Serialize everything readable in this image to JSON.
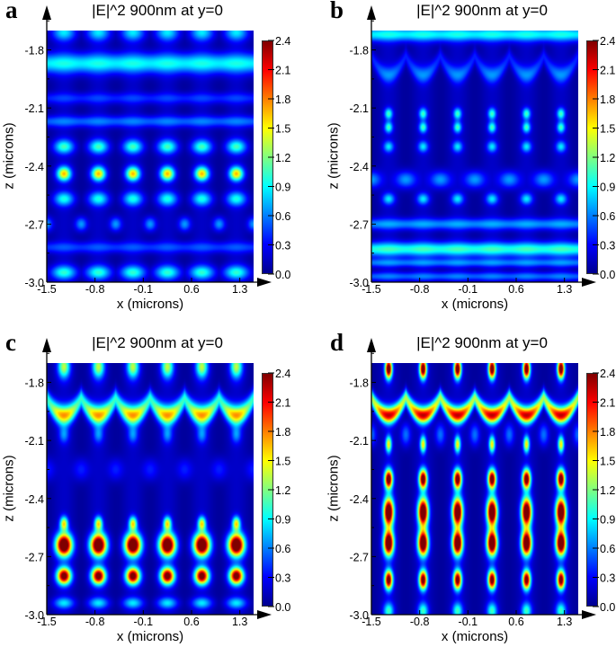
{
  "chart_data": [
    {
      "panel_label": "a",
      "type": "heatmap",
      "title": "|E|^2 900nm at y=0",
      "xlabel": "x (microns)",
      "ylabel": "z (microns)",
      "xlim": [
        -1.5,
        1.5
      ],
      "ylim": [
        -3.0,
        -1.7
      ],
      "xticks": [
        "-1.5",
        "-0.8",
        "-0.1",
        "0.6",
        "1.3"
      ],
      "yticks": [
        "-3.0",
        "-2.7",
        "-2.4",
        "-2.1",
        "-1.8"
      ],
      "colorbar": {
        "range": [
          0.0,
          2.4
        ],
        "ticks": [
          "0.0",
          "0.3",
          "0.6",
          "0.9",
          "1.2",
          "1.5",
          "1.8",
          "2.1",
          "2.4"
        ],
        "colormap": "jet"
      },
      "features": [
        {
          "kind": "spots",
          "z": -1.71,
          "x0": -1.25,
          "period": 0.5,
          "peak": 0.7,
          "sx": 0.12,
          "sz": 0.03
        },
        {
          "kind": "band",
          "z": -1.87,
          "peak": 0.8,
          "sz": 0.035
        },
        {
          "kind": "band",
          "z": -2.05,
          "peak": 0.3,
          "sz": 0.02
        },
        {
          "kind": "band",
          "z": -2.17,
          "peak": 0.45,
          "sz": 0.02
        },
        {
          "kind": "spots",
          "z": -2.3,
          "x0": -1.25,
          "period": 0.5,
          "peak": 0.9,
          "sx": 0.1,
          "sz": 0.025
        },
        {
          "kind": "spots",
          "z": -2.44,
          "x0": -1.25,
          "period": 0.5,
          "peak": 1.5,
          "sx": 0.07,
          "sz": 0.025
        },
        {
          "kind": "spots",
          "z": -2.57,
          "x0": -1.25,
          "period": 0.5,
          "peak": 0.8,
          "sx": 0.1,
          "sz": 0.025
        },
        {
          "kind": "spots",
          "z": -2.7,
          "x0": -1.0,
          "period": 0.5,
          "peak": 0.6,
          "sx": 0.06,
          "sz": 0.025
        },
        {
          "kind": "band",
          "z": -2.82,
          "peak": 0.35,
          "sz": 0.02
        },
        {
          "kind": "spots",
          "z": -2.95,
          "x0": -1.25,
          "period": 0.5,
          "peak": 0.85,
          "sx": 0.13,
          "sz": 0.025
        }
      ]
    },
    {
      "panel_label": "b",
      "type": "heatmap",
      "title": "|E|^2 900nm at y=0",
      "xlabel": "x (microns)",
      "ylabel": "z (microns)",
      "xlim": [
        -1.5,
        1.5
      ],
      "ylim": [
        -3.0,
        -1.7
      ],
      "xticks": [
        "-1.5",
        "-0.8",
        "-0.1",
        "0.6",
        "1.3"
      ],
      "yticks": [
        "-3.0",
        "-2.7",
        "-2.4",
        "-2.1",
        "-1.8"
      ],
      "colorbar": {
        "range": [
          0.0,
          2.4
        ],
        "ticks": [
          "0.0",
          "0.3",
          "0.6",
          "0.9",
          "1.2",
          "1.5",
          "1.8",
          "2.1",
          "2.4"
        ],
        "colormap": "jet"
      },
      "features": [
        {
          "kind": "band",
          "z": -1.72,
          "peak": 0.8,
          "sz": 0.025
        },
        {
          "kind": "arc",
          "z": -1.93,
          "x0": -1.25,
          "period": 0.5,
          "curv": 1.6,
          "peak": 0.5,
          "sz": 0.03
        },
        {
          "kind": "spots",
          "z": -2.13,
          "x0": -1.25,
          "period": 0.5,
          "peak": 0.9,
          "sx": 0.04,
          "sz": 0.02
        },
        {
          "kind": "spots",
          "z": -2.2,
          "x0": -1.25,
          "period": 0.5,
          "peak": 0.9,
          "sx": 0.04,
          "sz": 0.02
        },
        {
          "kind": "spots",
          "z": -2.3,
          "x0": -1.25,
          "period": 0.5,
          "peak": 0.7,
          "sx": 0.05,
          "sz": 0.02
        },
        {
          "kind": "spots",
          "z": -2.47,
          "x0": -1.0,
          "period": 0.5,
          "peak": 0.6,
          "sx": 0.1,
          "sz": 0.03
        },
        {
          "kind": "spots",
          "z": -2.57,
          "x0": -1.25,
          "period": 0.5,
          "peak": 0.7,
          "sx": 0.06,
          "sz": 0.02
        },
        {
          "kind": "band",
          "z": -2.7,
          "peak": 0.55,
          "sz": 0.02
        },
        {
          "kind": "band",
          "z": -2.83,
          "peak": 0.9,
          "sz": 0.025
        },
        {
          "kind": "band",
          "z": -2.9,
          "peak": 0.5,
          "sz": 0.015
        },
        {
          "kind": "band",
          "z": -2.97,
          "peak": 0.45,
          "sz": 0.015
        }
      ]
    },
    {
      "panel_label": "c",
      "type": "heatmap",
      "title": "|E|^2 900nm at y=0",
      "xlabel": "x (microns)",
      "ylabel": "z (microns)",
      "xlim": [
        -1.5,
        1.5
      ],
      "ylim": [
        -3.0,
        -1.7
      ],
      "xticks": [
        "-1.5",
        "-0.8",
        "-0.1",
        "0.6",
        "1.3"
      ],
      "yticks": [
        "-3.0",
        "-2.7",
        "-2.4",
        "-2.1",
        "-1.8"
      ],
      "colorbar": {
        "range": [
          0.0,
          2.4
        ],
        "ticks": [
          "0.0",
          "0.3",
          "0.6",
          "0.9",
          "1.2",
          "1.5",
          "1.8",
          "2.1",
          "2.4"
        ],
        "colormap": "jet"
      },
      "features": [
        {
          "kind": "spots",
          "z": -1.72,
          "x0": -1.25,
          "period": 0.5,
          "peak": 1.2,
          "sx": 0.06,
          "sz": 0.04
        },
        {
          "kind": "arc",
          "z": -1.97,
          "x0": -1.25,
          "period": 0.5,
          "curv": 1.4,
          "peak": 1.6,
          "sz": 0.035
        },
        {
          "kind": "spots",
          "z": -2.07,
          "x0": -1.25,
          "period": 0.5,
          "peak": 0.5,
          "sx": 0.05,
          "sz": 0.03
        },
        {
          "kind": "spots",
          "z": -2.25,
          "x0": -1.0,
          "period": 0.5,
          "peak": 0.3,
          "sx": 0.08,
          "sz": 0.04
        },
        {
          "kind": "spots",
          "z": -2.53,
          "x0": -1.25,
          "period": 0.5,
          "peak": 1.4,
          "sx": 0.04,
          "sz": 0.025
        },
        {
          "kind": "spots",
          "z": -2.64,
          "x0": -1.25,
          "period": 0.5,
          "peak": 2.9,
          "sx": 0.08,
          "sz": 0.04
        },
        {
          "kind": "spots",
          "z": -2.8,
          "x0": -1.25,
          "period": 0.5,
          "peak": 2.5,
          "sx": 0.07,
          "sz": 0.03
        },
        {
          "kind": "spots",
          "z": -2.94,
          "x0": -1.25,
          "period": 0.5,
          "peak": 0.7,
          "sx": 0.1,
          "sz": 0.02
        }
      ]
    },
    {
      "panel_label": "d",
      "type": "heatmap",
      "title": "|E|^2 900nm at y=0",
      "xlabel": "x (microns)",
      "ylabel": "z (microns)",
      "xlim": [
        -1.5,
        1.5
      ],
      "ylim": [
        -3.0,
        -1.7
      ],
      "xticks": [
        "-1.5",
        "-0.8",
        "-0.1",
        "0.6",
        "1.3"
      ],
      "yticks": [
        "-3.0",
        "-2.7",
        "-2.4",
        "-2.1",
        "-1.8"
      ],
      "colorbar": {
        "range": [
          0.0,
          2.4
        ],
        "ticks": [
          "0.0",
          "0.3",
          "0.6",
          "0.9",
          "1.2",
          "1.5",
          "1.8",
          "2.1",
          "2.4"
        ],
        "colormap": "jet"
      },
      "features": [
        {
          "kind": "spots",
          "z": -1.73,
          "x0": -1.25,
          "period": 0.5,
          "peak": 2.6,
          "sx": 0.035,
          "sz": 0.035
        },
        {
          "kind": "arc",
          "z": -1.97,
          "x0": -1.25,
          "period": 0.5,
          "curv": 1.5,
          "peak": 2.1,
          "sz": 0.03
        },
        {
          "kind": "spots",
          "z": -2.12,
          "x0": -1.25,
          "period": 0.5,
          "peak": 1.4,
          "sx": 0.03,
          "sz": 0.03
        },
        {
          "kind": "spots",
          "z": -2.07,
          "x0": -1.0,
          "period": 0.5,
          "peak": 0.5,
          "sx": 0.05,
          "sz": 0.04
        },
        {
          "kind": "spots",
          "z": -2.3,
          "x0": -1.25,
          "period": 0.5,
          "peak": 2.6,
          "sx": 0.04,
          "sz": 0.035
        },
        {
          "kind": "spots",
          "z": -2.47,
          "x0": -1.25,
          "period": 0.5,
          "peak": 2.9,
          "sx": 0.05,
          "sz": 0.05
        },
        {
          "kind": "spots",
          "z": -2.63,
          "x0": -1.25,
          "period": 0.5,
          "peak": 2.9,
          "sx": 0.05,
          "sz": 0.045
        },
        {
          "kind": "spots",
          "z": -2.82,
          "x0": -1.25,
          "period": 0.5,
          "peak": 2.5,
          "sx": 0.04,
          "sz": 0.035
        },
        {
          "kind": "spots",
          "z": -2.98,
          "x0": -1.25,
          "period": 0.5,
          "peak": 0.9,
          "sx": 0.05,
          "sz": 0.03
        }
      ]
    }
  ]
}
